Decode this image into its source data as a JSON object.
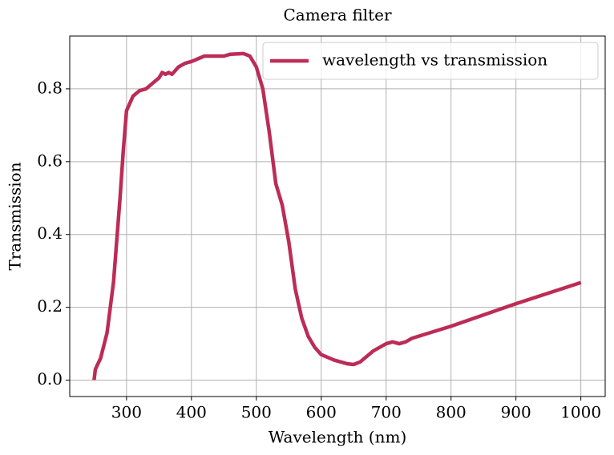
{
  "chart_data": {
    "type": "line",
    "title": "Camera filter",
    "xlabel": "Wavelength (nm)",
    "ylabel": "Transmission",
    "x": [
      250,
      252,
      260,
      270,
      280,
      290,
      295,
      300,
      310,
      320,
      330,
      340,
      350,
      355,
      360,
      365,
      370,
      380,
      390,
      400,
      420,
      440,
      450,
      460,
      480,
      490,
      500,
      510,
      520,
      530,
      540,
      550,
      560,
      570,
      580,
      590,
      600,
      620,
      640,
      650,
      660,
      680,
      700,
      710,
      720,
      730,
      740,
      800,
      900,
      1000
    ],
    "series": [
      {
        "name": "wavelength vs transmission",
        "color": "#bc2c56",
        "values": [
          0.0,
          0.03,
          0.06,
          0.13,
          0.27,
          0.5,
          0.63,
          0.74,
          0.78,
          0.795,
          0.8,
          0.815,
          0.83,
          0.845,
          0.84,
          0.845,
          0.84,
          0.86,
          0.87,
          0.875,
          0.89,
          0.89,
          0.89,
          0.895,
          0.897,
          0.89,
          0.86,
          0.8,
          0.68,
          0.54,
          0.48,
          0.38,
          0.25,
          0.17,
          0.12,
          0.09,
          0.07,
          0.055,
          0.045,
          0.043,
          0.05,
          0.08,
          0.1,
          0.105,
          0.1,
          0.105,
          0.115,
          0.148,
          0.21,
          0.268
        ]
      }
    ],
    "xlim": [
      212.5,
      1037.5
    ],
    "xticks": [
      300,
      400,
      500,
      600,
      700,
      800,
      900,
      1000
    ],
    "ylim": [
      -0.045,
      0.945
    ],
    "yticks": [
      {
        "value": 0,
        "label": "0.0"
      },
      {
        "value": 0.2,
        "label": "0.2"
      },
      {
        "value": 0.4,
        "label": "0.4"
      },
      {
        "value": 0.6,
        "label": "0.6"
      },
      {
        "value": 0.8,
        "label": "0.8"
      }
    ],
    "grid": true,
    "legend": "upper right"
  }
}
